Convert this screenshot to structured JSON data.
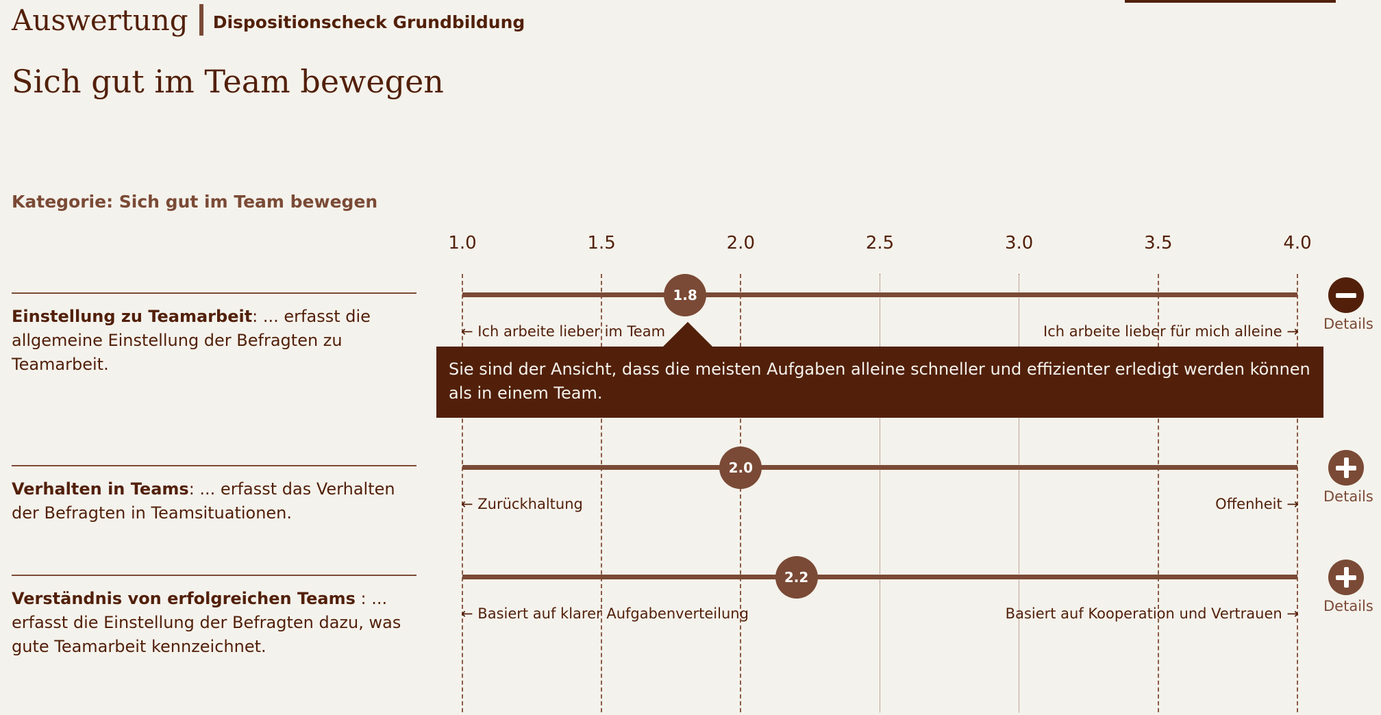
{
  "header": {
    "brand": "Auswertung",
    "subtitle": "Dispositionscheck Grundbildung"
  },
  "page_title": "Sich gut im Team bewegen",
  "category_label": "Kategorie: Sich gut im Team bewegen",
  "scale": {
    "min": 1.0,
    "max": 4.0,
    "ticks": [
      "1.0",
      "1.5",
      "2.0",
      "2.5",
      "3.0",
      "3.5",
      "4.0"
    ]
  },
  "arrows": {
    "left": "←",
    "right": "→"
  },
  "details_label": "Details",
  "rows": [
    {
      "title": "Einstellung zu Teamarbeit",
      "description": ": ... erfasst die allgemeine Einstellung der Befragten zu Teamarbeit.",
      "value": 1.8,
      "value_label": "1.8",
      "left_label": "Ich arbeite lieber im Team",
      "right_label": "Ich arbeite lieber für mich alleine",
      "details_state": "expanded",
      "details_icon": "minus-icon"
    },
    {
      "title": "Verhalten in Teams",
      "description": ": ... erfasst das Verhalten der Befragten in Teamsituationen.",
      "value": 2.0,
      "value_label": "2.0",
      "left_label": "Zurückhaltung",
      "right_label": "Offenheit",
      "details_state": "collapsed",
      "details_icon": "plus-icon"
    },
    {
      "title": "Verständnis von erfolgreichen Teams",
      "description": " : ... erfasst die Einstellung der Befragten dazu, was gute Teamarbeit kennzeichnet.",
      "value": 2.2,
      "value_label": "2.2",
      "left_label": "Basiert auf klarer Aufgabenverteilung",
      "right_label": "Basiert auf Kooperation und Vertrauen",
      "details_state": "collapsed",
      "details_icon": "plus-icon"
    }
  ],
  "tooltip": {
    "text": "Sie sind der Ansicht, dass die meisten Aufgaben alleine schneller und effizienter erledigt werden können als in einem Team."
  },
  "colors": {
    "background": "#f4f2ec",
    "primary": "#7a4a36",
    "dark": "#52200a"
  }
}
